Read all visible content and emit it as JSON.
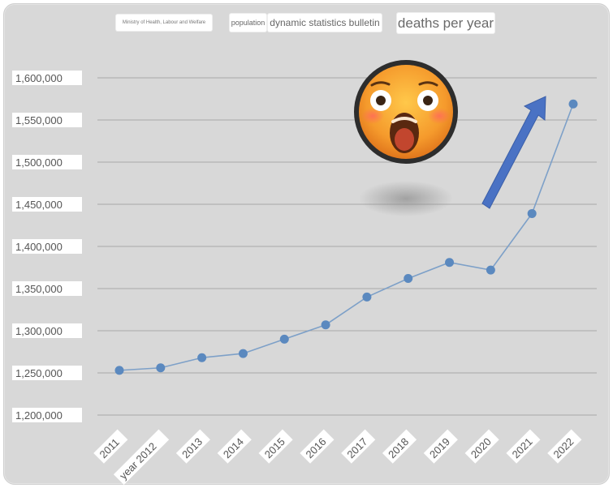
{
  "header": {
    "ministry": "Ministry of Health, Labour and Welfare",
    "population": "population",
    "bulletin": "dynamic statistics bulletin"
  },
  "icons": {
    "emoji": "shocked-face-emoji-icon",
    "arrow": "up-arrow-icon"
  },
  "colors": {
    "background": "#d8d8d8",
    "line": "#7da0c8",
    "marker": "#5b89bf",
    "arrow": "#4a72c4",
    "gridline": "#a8a8a8"
  },
  "chart_data": {
    "type": "line",
    "title": "deaths per year",
    "xlabel": "",
    "ylabel": "",
    "categories": [
      "2011",
      "year 2012",
      "2013",
      "2014",
      "2015",
      "2016",
      "2017",
      "2018",
      "2019",
      "2020",
      "2021",
      "2022"
    ],
    "series": [
      {
        "values": [
          1253000,
          1256000,
          1268000,
          1273000,
          1290000,
          1307000,
          1340000,
          1362000,
          1381000,
          1372000,
          1439000,
          1569000
        ]
      }
    ],
    "ylim": [
      1200000,
      1600000
    ],
    "yticks": [
      1200000,
      1250000,
      1300000,
      1350000,
      1400000,
      1450000,
      1500000,
      1550000,
      1600000
    ],
    "ytick_labels": [
      "1,200,000",
      "1,250,000",
      "1,300,000",
      "1,350,000",
      "1,400,000",
      "1,450,000",
      "1,500,000",
      "1,550,000",
      "1,600,000"
    ],
    "grid": true,
    "legend": "none"
  }
}
